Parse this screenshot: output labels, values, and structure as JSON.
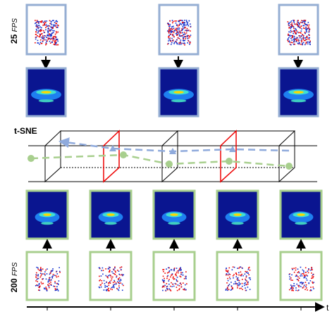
{
  "top_label": {
    "rate": "25",
    "unit": "FPS"
  },
  "middle_label": "t-SNE",
  "bottom_label": {
    "rate": "200",
    "unit": "FPS"
  },
  "axis_label": "t"
}
